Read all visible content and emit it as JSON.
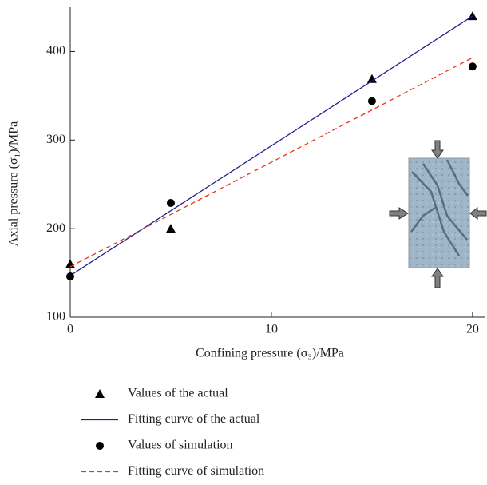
{
  "chart_data": {
    "type": "scatter",
    "x_label": "Confining pressure (σ₃)/MPa",
    "y_label": "Axial pressure (σ₁)/MPa",
    "xlim": [
      0,
      20.6
    ],
    "ylim": [
      100,
      450
    ],
    "xticks": [
      0,
      10,
      20
    ],
    "yticks": [
      100,
      200,
      300,
      400
    ],
    "grid": false,
    "series": [
      {
        "name": "Values of the actual",
        "type": "scatter",
        "marker": "triangle",
        "color": "#000000",
        "x": [
          0,
          5,
          15,
          20
        ],
        "values": [
          160,
          200,
          369,
          440
        ]
      },
      {
        "name": "Fitting curve of the actual",
        "type": "line",
        "dash": false,
        "color": "#1f1f8f",
        "x": [
          0,
          20
        ],
        "values": [
          147,
          440
        ]
      },
      {
        "name": "Values of simulation",
        "type": "scatter",
        "marker": "circle",
        "color": "#000000",
        "x": [
          0,
          5,
          15,
          20
        ],
        "values": [
          146,
          229,
          344,
          383
        ]
      },
      {
        "name": "Fitting curve of simulation",
        "type": "line",
        "dash": true,
        "color": "#e8321e",
        "x": [
          0,
          20
        ],
        "values": [
          157,
          393
        ]
      }
    ]
  }
}
